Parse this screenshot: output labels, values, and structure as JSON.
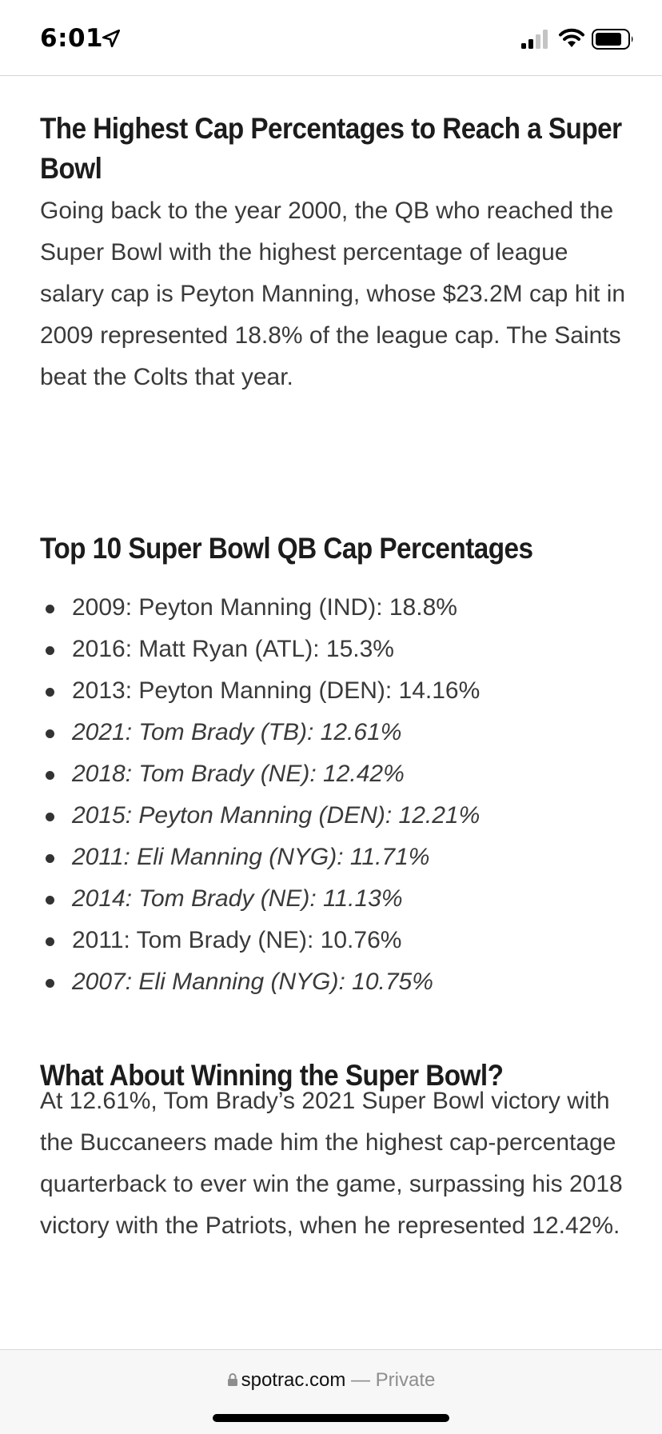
{
  "status_bar": {
    "time": "6:01"
  },
  "article": {
    "section1": {
      "heading": "The Highest Cap Percentages to Reach a Super Bowl",
      "body": "Going back to the year 2000, the QB who reached the Super Bowl with the highest percentage of league salary cap is Peyton Manning, whose $23.2M cap hit in 2009 represented 18.8% of the league cap. The Saints beat the Colts that year."
    },
    "section2": {
      "heading": "Top 10 Super Bowl QB Cap Percentages",
      "items": [
        {
          "text": "2009: Peyton Manning (IND): 18.8%",
          "italic": false
        },
        {
          "text": "2016: Matt Ryan (ATL): 15.3%",
          "italic": false
        },
        {
          "text": "2013: Peyton Manning (DEN): 14.16%",
          "italic": false
        },
        {
          "text": "2021: Tom Brady (TB): 12.61%",
          "italic": true
        },
        {
          "text": "2018: Tom Brady (NE): 12.42%",
          "italic": true
        },
        {
          "text": "2015: Peyton Manning (DEN): 12.21%",
          "italic": true
        },
        {
          "text": "2011: Eli Manning (NYG): 11.71%",
          "italic": true
        },
        {
          "text": "2014: Tom Brady (NE): 11.13%",
          "italic": true
        },
        {
          "text": "2011: Tom Brady (NE): 10.76%",
          "italic": false
        },
        {
          "text": "2007: Eli Manning (NYG): 10.75%",
          "italic": true
        }
      ]
    },
    "section3": {
      "heading": "What About Winning the Super Bowl?",
      "body": "At 12.61%, Tom Brady’s 2021 Super Bowl victory with the Buccaneers made him the highest cap-percentage quarterback to ever win the game, surpassing his 2018 victory with the Patriots, when he represented 12.42%."
    }
  },
  "browser": {
    "domain": "spotrac.com",
    "separator": " — ",
    "mode": "Private"
  },
  "icons": {
    "location": "location-arrow-icon",
    "signal": "cell-signal-icon",
    "wifi": "wifi-icon",
    "battery": "battery-icon",
    "lock": "lock-icon"
  }
}
